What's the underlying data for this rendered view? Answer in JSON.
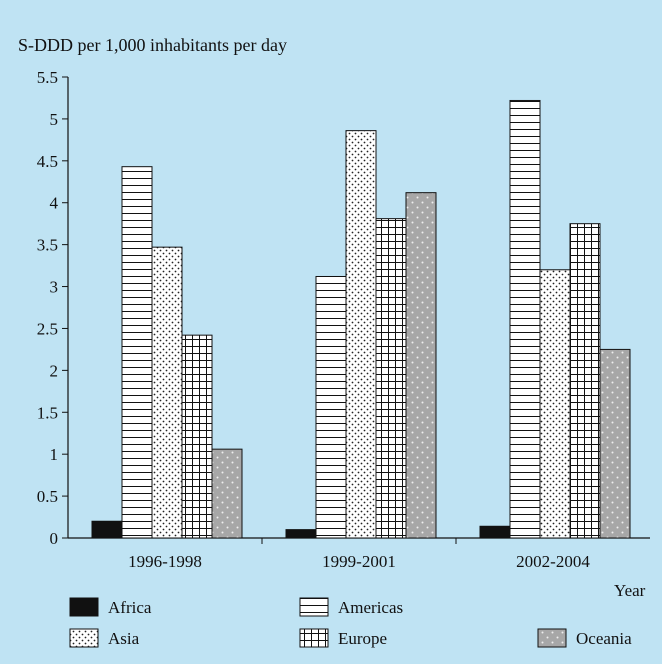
{
  "colors": {
    "background": "#bfe3f3",
    "outline": "#111111",
    "africa": "#111111",
    "americas": "#ffffff",
    "asia": "#ffffff",
    "europe": "#ffffff",
    "oceania": "#a7a7a7"
  },
  "chart_data": {
    "type": "bar",
    "ylabel": "S-DDD per 1,000 inhabitants per day",
    "xlabel": "Year",
    "categories": [
      "1996-1998",
      "1999-2001",
      "2002-2004"
    ],
    "ylim": [
      0,
      5.5
    ],
    "yticks": [
      "0",
      "0.5",
      "1",
      "1.5",
      "2",
      "2.5",
      "3",
      "3.5",
      "4",
      "4.5",
      "5",
      "5.5"
    ],
    "grid": false,
    "legend_position": "bottom",
    "series": [
      {
        "name": "Africa",
        "pattern": "solid-black",
        "values": [
          0.2,
          0.1,
          0.14
        ]
      },
      {
        "name": "Americas",
        "pattern": "horizontal-lines",
        "values": [
          4.43,
          3.12,
          5.22
        ]
      },
      {
        "name": "Asia",
        "pattern": "dots",
        "values": [
          3.47,
          4.86,
          3.2
        ]
      },
      {
        "name": "Europe",
        "pattern": "grid",
        "values": [
          2.42,
          3.81,
          3.75
        ]
      },
      {
        "name": "Oceania",
        "pattern": "grey-dots",
        "values": [
          1.06,
          4.12,
          2.25
        ]
      }
    ]
  }
}
